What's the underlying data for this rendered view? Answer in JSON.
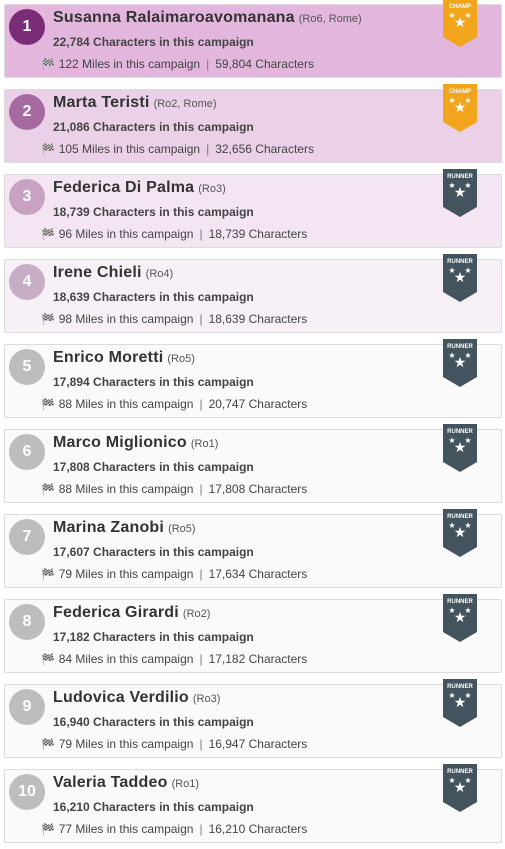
{
  "leaderboard": {
    "entries": [
      {
        "rank": "1",
        "name": "Susanna Ralaimaroavomanana",
        "region": "(Ro6, Rome)",
        "campaign_chars": "22,784 Characters in this campaign",
        "miles": "122 Miles in this campaign",
        "total_chars": "59,804 Characters",
        "badge": "CHAMP",
        "bg": "#e3b7dd",
        "circle": "#7b2c76",
        "badge_color": "#f2a51c"
      },
      {
        "rank": "2",
        "name": "Marta Teristi",
        "region": "(Ro2, Rome)",
        "campaign_chars": "21,086 Characters in this campaign",
        "miles": "105 Miles in this campaign",
        "total_chars": "32,656 Characters",
        "badge": "CHAMP",
        "bg": "#ead1e8",
        "circle": "#a66aa1",
        "badge_color": "#f2a51c"
      },
      {
        "rank": "3",
        "name": "Federica Di Palma",
        "region": "(Ro3)",
        "campaign_chars": "18,739 Characters in this campaign",
        "miles": "96 Miles in this campaign",
        "total_chars": "18,739 Characters",
        "badge": "RUNNER",
        "bg": "#f3e5f2",
        "circle": "#c7a2c3",
        "badge_color": "#44545e"
      },
      {
        "rank": "4",
        "name": "Irene Chieli",
        "region": "(Ro4)",
        "campaign_chars": "18,639 Characters in this campaign",
        "miles": "98 Miles in this campaign",
        "total_chars": "18,639 Characters",
        "badge": "RUNNER",
        "bg": "#f8f0f7",
        "circle": "#c7aec5",
        "badge_color": "#44545e"
      },
      {
        "rank": "5",
        "name": "Enrico Moretti",
        "region": "(Ro5)",
        "campaign_chars": "17,894 Characters in this campaign",
        "miles": "88 Miles in this campaign",
        "total_chars": "20,747 Characters",
        "badge": "RUNNER",
        "bg": "#fafafa",
        "circle": "#bdbdbd",
        "badge_color": "#44545e"
      },
      {
        "rank": "6",
        "name": "Marco Miglionico",
        "region": "(Ro1)",
        "campaign_chars": "17,808 Characters in this campaign",
        "miles": "88 Miles in this campaign",
        "total_chars": "17,808 Characters",
        "badge": "RUNNER",
        "bg": "#fafafa",
        "circle": "#bdbdbd",
        "badge_color": "#44545e"
      },
      {
        "rank": "7",
        "name": "Marina Zanobi",
        "region": "(Ro5)",
        "campaign_chars": "17,607 Characters in this campaign",
        "miles": "79 Miles in this campaign",
        "total_chars": "17,634 Characters",
        "badge": "RUNNER",
        "bg": "#fafafa",
        "circle": "#bdbdbd",
        "badge_color": "#44545e"
      },
      {
        "rank": "8",
        "name": "Federica Girardi",
        "region": "(Ro2)",
        "campaign_chars": "17,182 Characters in this campaign",
        "miles": "84 Miles in this campaign",
        "total_chars": "17,182 Characters",
        "badge": "RUNNER",
        "bg": "#fafafa",
        "circle": "#bdbdbd",
        "badge_color": "#44545e"
      },
      {
        "rank": "9",
        "name": "Ludovica Verdilio",
        "region": "(Ro3)",
        "campaign_chars": "16,940 Characters in this campaign",
        "miles": "79 Miles in this campaign",
        "total_chars": "16,947 Characters",
        "badge": "RUNNER",
        "bg": "#fafafa",
        "circle": "#bdbdbd",
        "badge_color": "#44545e"
      },
      {
        "rank": "10",
        "name": "Valeria Taddeo",
        "region": "(Ro1)",
        "campaign_chars": "16,210 Characters in this campaign",
        "miles": "77 Miles in this campaign",
        "total_chars": "16,210 Characters",
        "badge": "RUNNER",
        "bg": "#fafafa",
        "circle": "#bdbdbd",
        "badge_color": "#44545e"
      }
    ],
    "icons": {
      "miles": "checkered-flag-icon",
      "badge": "ribbon-badge-icon"
    }
  }
}
